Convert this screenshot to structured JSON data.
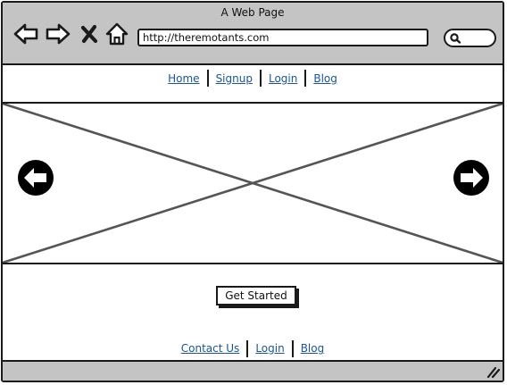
{
  "window": {
    "title": "A Web Page"
  },
  "browser": {
    "icons": [
      "back-arrow-icon",
      "forward-arrow-icon",
      "close-x-icon",
      "home-icon",
      "search-icon",
      "resize-grip-icon"
    ],
    "url": "http://theremotants.com",
    "search_value": ""
  },
  "top_nav": {
    "links": [
      "Home",
      "Signup",
      "Login",
      "Blog"
    ]
  },
  "hero": {
    "icons": [
      "arrow-left-circle-icon",
      "arrow-right-circle-icon"
    ]
  },
  "cta": {
    "label": "Get Started"
  },
  "footer_nav": {
    "links": [
      "Contact Us",
      "Login",
      "Blog"
    ]
  },
  "colors": {
    "link": "#1a56a0",
    "chrome": "#c4c4c4",
    "ink": "#1a1a1a"
  }
}
